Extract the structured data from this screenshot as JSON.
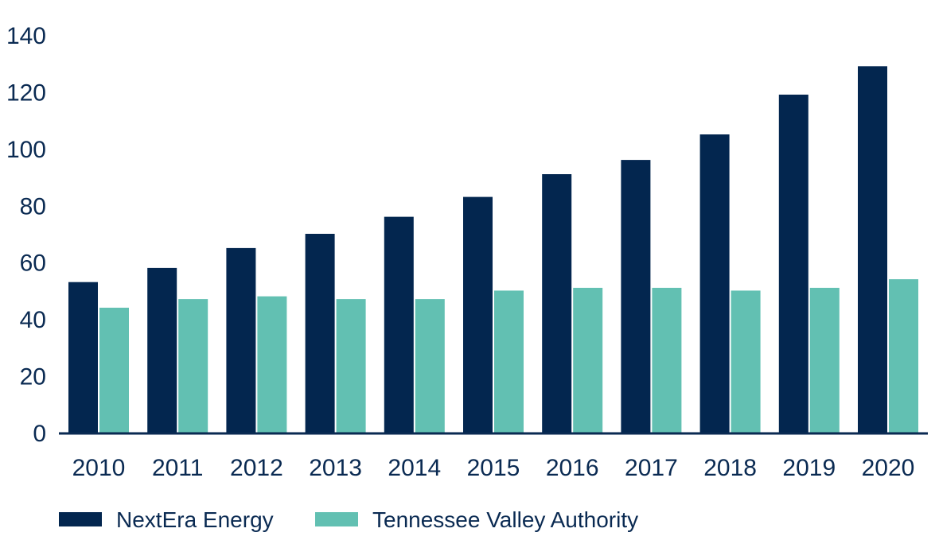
{
  "chart_data": {
    "type": "bar",
    "title": "",
    "xlabel": "",
    "ylabel": "",
    "categories": [
      "2010",
      "2011",
      "2012",
      "2013",
      "2014",
      "2015",
      "2016",
      "2017",
      "2018",
      "2019",
      "2020"
    ],
    "series": [
      {
        "name": "NextEra Energy",
        "color": "#03264f",
        "values": [
          53,
          58,
          65,
          70,
          76,
          83,
          91,
          96,
          105,
          119,
          129
        ]
      },
      {
        "name": "Tennessee Valley Authority",
        "color": "#62c0b2",
        "values": [
          44,
          47,
          48,
          47,
          47,
          50,
          51,
          51,
          50,
          51,
          54
        ]
      }
    ],
    "ylim": [
      0,
      140
    ],
    "yticks": [
      0,
      20,
      40,
      60,
      80,
      100,
      120,
      140
    ],
    "grid": false,
    "legend_position": "bottom-left",
    "axis_color": "#0a2a52",
    "label_color": "#0a2a52"
  }
}
